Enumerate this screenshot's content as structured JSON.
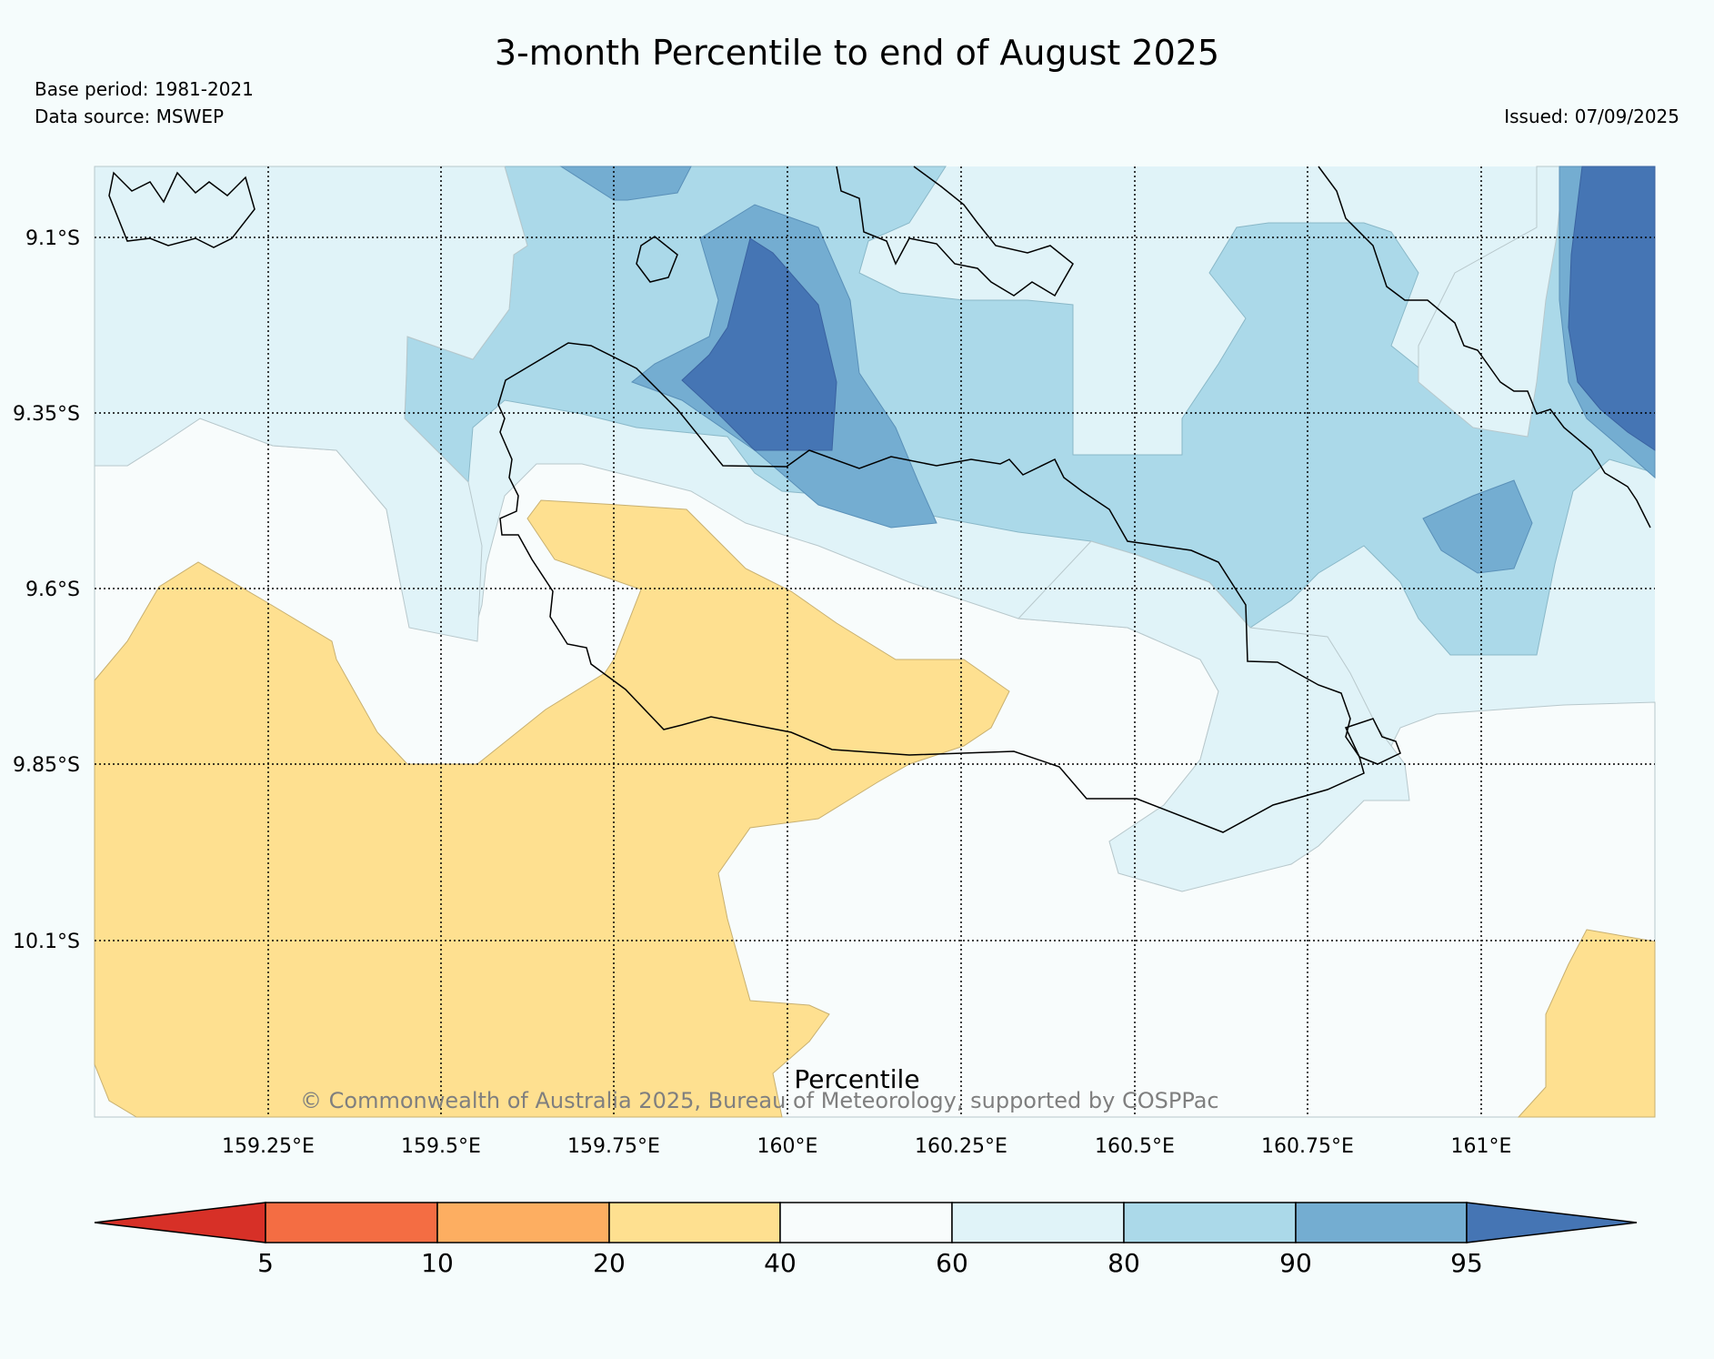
{
  "title": "3-month Percentile to end of August 2025",
  "base_period": "Base period: 1981-2021",
  "data_source": "Data source: MSWEP",
  "issued": "Issued: 07/09/2025",
  "copyright": "© Commonwealth of Australia 2025, Bureau of Meteorology, supported by COSPPac",
  "lat_labels": [
    "9.1°S",
    "9.35°S",
    "9.6°S",
    "9.85°S",
    "10.1°S"
  ],
  "lon_labels": [
    "159.25°E",
    "159.5°E",
    "159.75°E",
    "160°E",
    "160.25°E",
    "160.5°E",
    "160.75°E",
    "161°E"
  ],
  "colorbar": {
    "label": "Percentile",
    "ticks": [
      "5",
      "10",
      "20",
      "40",
      "60",
      "80",
      "90",
      "95"
    ],
    "colors": [
      "#d73027",
      "#f46d43",
      "#fdae61",
      "#fee090",
      "#f8fcfc",
      "#e0f3f8",
      "#abd9e9",
      "#74add1",
      "#4575b4"
    ]
  }
}
